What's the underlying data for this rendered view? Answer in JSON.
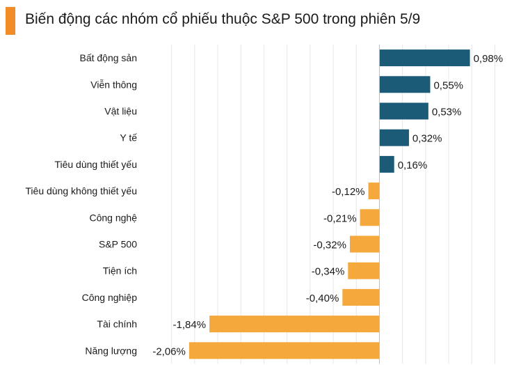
{
  "chart_data": {
    "type": "bar",
    "orientation": "horizontal",
    "title": "Biến động các nhóm cổ phiếu thuộc S&P 500 trong phiên 5/9",
    "categories": [
      "Bất động sản",
      "Viễn thông",
      "Vật liệu",
      "Y tế",
      "Tiêu dùng thiết yếu",
      "Tiêu dùng không thiết yếu",
      "Công nghệ",
      "S&P 500",
      "Tiện ích",
      "Công nghiệp",
      "Tài chính",
      "Năng lượng"
    ],
    "values": [
      0.98,
      0.55,
      0.53,
      0.32,
      0.16,
      -0.12,
      -0.21,
      -0.32,
      -0.34,
      -0.4,
      -1.84,
      -2.06
    ],
    "value_labels": [
      "0,98%",
      "0,55%",
      "0,53%",
      "0,32%",
      "0,16%",
      "-0,12%",
      "-0,21%",
      "-0,32%",
      "-0,34%",
      "-0,40%",
      "-1,84%",
      "-2,06%"
    ],
    "xlim": [
      -2.3,
      1.45
    ],
    "grid": true,
    "legend": "none",
    "colors": {
      "positive": "#1B5B78",
      "negative": "#F5A83C",
      "accent": "#F28C28",
      "grid": "#E6E6E6"
    }
  }
}
